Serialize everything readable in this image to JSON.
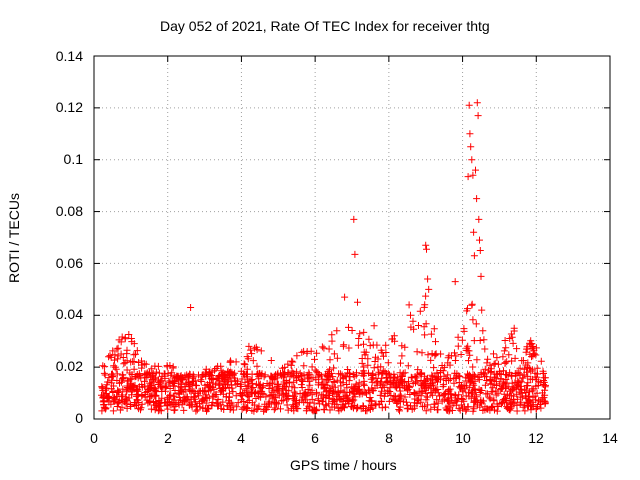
{
  "chart_data": {
    "type": "scatter",
    "title": "Day 052 of 2021, Rate Of TEC Index for receiver thtg",
    "xlabel": "GPS time / hours",
    "ylabel": "ROTI / TECUs",
    "xlim": [
      0,
      14
    ],
    "ylim": [
      0,
      0.14
    ],
    "xticks": [
      0,
      2,
      4,
      6,
      8,
      10,
      12,
      14
    ],
    "yticks": [
      0,
      0.02,
      0.04,
      0.06,
      0.08,
      0.1,
      0.12,
      0.14
    ],
    "xtick_labels": [
      "0",
      "2",
      "4",
      "6",
      "8",
      "10",
      "12",
      "14"
    ],
    "ytick_labels": [
      "0",
      "0.02",
      "0.04",
      "0.06",
      "0.08",
      "0.1",
      "0.12",
      "0.14"
    ],
    "grid": true,
    "marker": "+",
    "color": "#ff0000",
    "series": [
      {
        "name": "ROTI",
        "x_range": [
          0.2,
          12.25
        ],
        "baseline_range": [
          0.003,
          0.018
        ],
        "envelope": [
          {
            "x": 0.2,
            "max": 0.02
          },
          {
            "x": 0.5,
            "max": 0.028
          },
          {
            "x": 0.9,
            "max": 0.034
          },
          {
            "x": 1.3,
            "max": 0.024
          },
          {
            "x": 2.0,
            "max": 0.021
          },
          {
            "x": 2.8,
            "max": 0.018
          },
          {
            "x": 3.6,
            "max": 0.022
          },
          {
            "x": 4.3,
            "max": 0.03
          },
          {
            "x": 5.0,
            "max": 0.02
          },
          {
            "x": 5.7,
            "max": 0.027
          },
          {
            "x": 6.3,
            "max": 0.03
          },
          {
            "x": 6.8,
            "max": 0.04
          },
          {
            "x": 7.3,
            "max": 0.034
          },
          {
            "x": 7.8,
            "max": 0.028
          },
          {
            "x": 8.4,
            "max": 0.036
          },
          {
            "x": 9.0,
            "max": 0.05
          },
          {
            "x": 9.5,
            "max": 0.02
          },
          {
            "x": 10.3,
            "max": 0.05
          },
          {
            "x": 10.7,
            "max": 0.024
          },
          {
            "x": 11.4,
            "max": 0.034
          },
          {
            "x": 12.0,
            "max": 0.03
          },
          {
            "x": 12.25,
            "max": 0.018
          }
        ],
        "peaks": [
          {
            "x": 2.62,
            "y": 0.043
          },
          {
            "x": 6.8,
            "y": 0.047
          },
          {
            "x": 7.05,
            "y": 0.077
          },
          {
            "x": 7.08,
            "y": 0.0635
          },
          {
            "x": 7.15,
            "y": 0.045
          },
          {
            "x": 7.6,
            "y": 0.036
          },
          {
            "x": 8.55,
            "y": 0.044
          },
          {
            "x": 9.0,
            "y": 0.067
          },
          {
            "x": 9.02,
            "y": 0.0655
          },
          {
            "x": 9.05,
            "y": 0.054
          },
          {
            "x": 9.08,
            "y": 0.05
          },
          {
            "x": 9.8,
            "y": 0.053
          },
          {
            "x": 10.15,
            "y": 0.0935
          },
          {
            "x": 10.18,
            "y": 0.121
          },
          {
            "x": 10.2,
            "y": 0.11
          },
          {
            "x": 10.22,
            "y": 0.105
          },
          {
            "x": 10.25,
            "y": 0.1
          },
          {
            "x": 10.28,
            "y": 0.094
          },
          {
            "x": 10.3,
            "y": 0.072
          },
          {
            "x": 10.32,
            "y": 0.063
          },
          {
            "x": 10.35,
            "y": 0.096
          },
          {
            "x": 10.38,
            "y": 0.085
          },
          {
            "x": 10.4,
            "y": 0.122
          },
          {
            "x": 10.42,
            "y": 0.117
          },
          {
            "x": 10.44,
            "y": 0.077
          },
          {
            "x": 10.46,
            "y": 0.069
          },
          {
            "x": 10.48,
            "y": 0.065
          },
          {
            "x": 10.5,
            "y": 0.055
          },
          {
            "x": 10.52,
            "y": 0.042
          },
          {
            "x": 10.55,
            "y": 0.034
          },
          {
            "x": 11.4,
            "y": 0.035
          }
        ]
      }
    ]
  }
}
